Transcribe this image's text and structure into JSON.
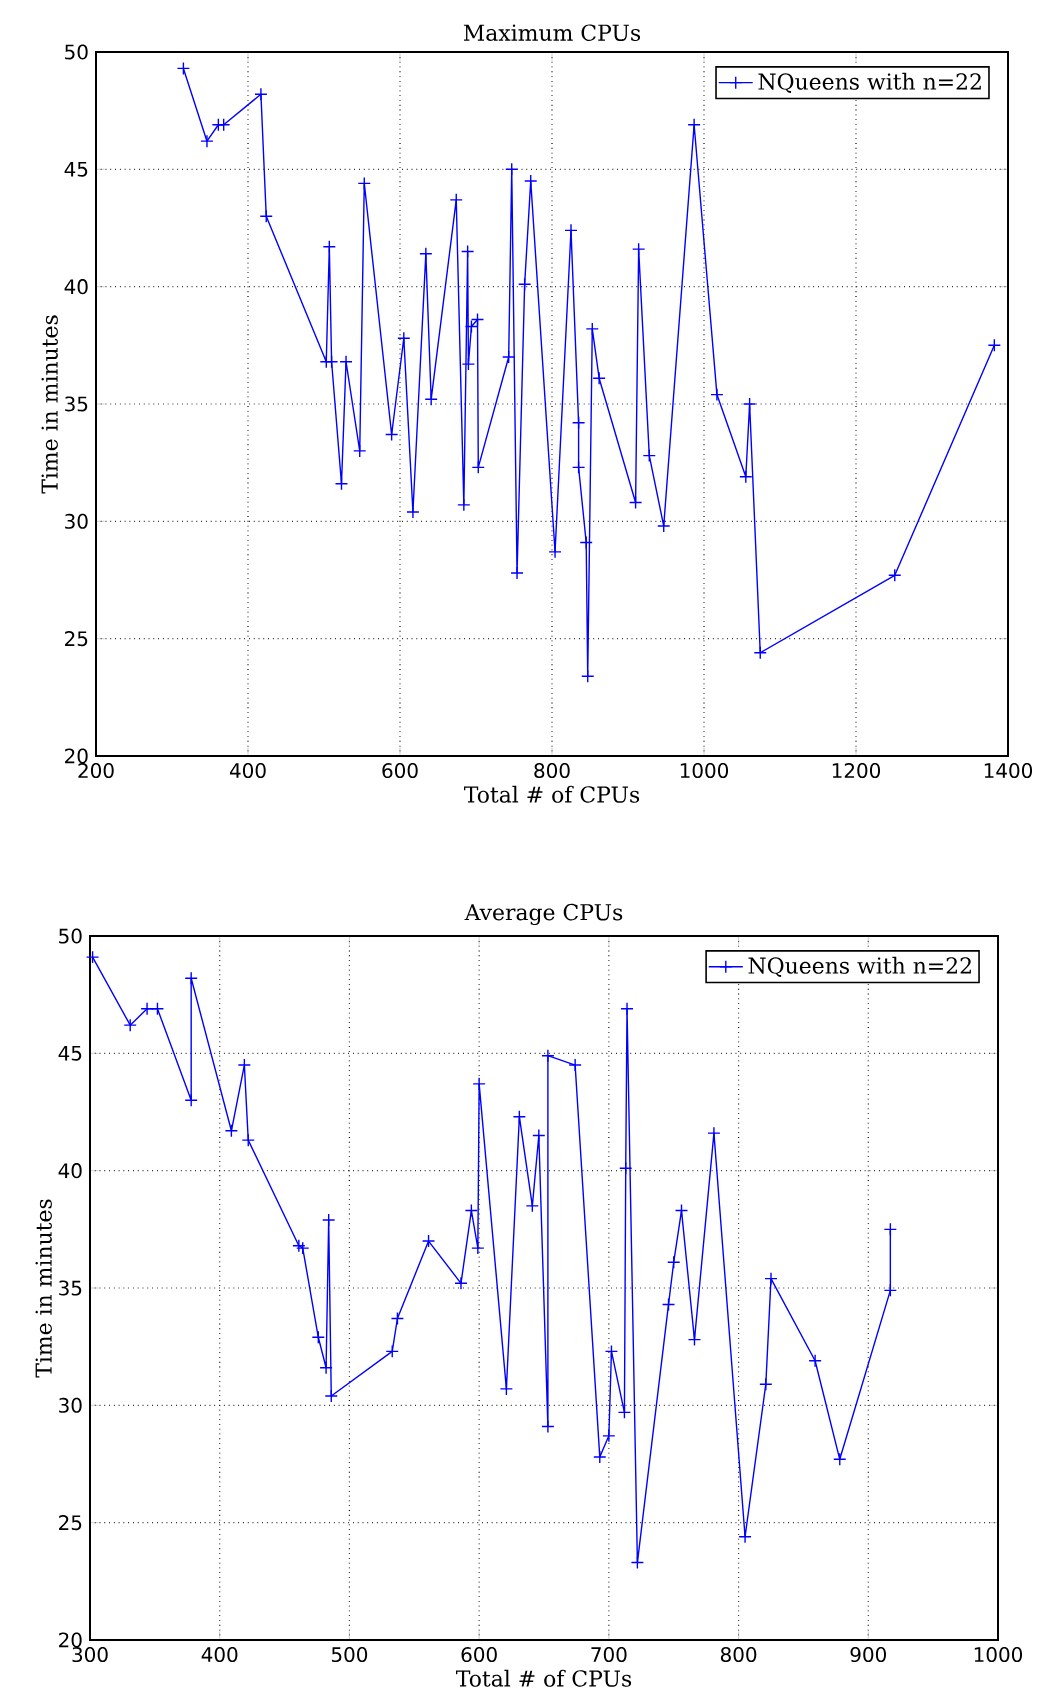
{
  "chart_data": [
    {
      "type": "line",
      "title": "Maximum CPUs",
      "xlabel": "Total # of CPUs",
      "ylabel": "Time in minutes",
      "xlim": [
        200,
        1400
      ],
      "ylim": [
        20,
        50
      ],
      "xticks": [
        200,
        400,
        600,
        800,
        1000,
        1200,
        1400
      ],
      "yticks": [
        20,
        25,
        30,
        35,
        40,
        45,
        50
      ],
      "grid": true,
      "legend": "top right",
      "marker": "cross",
      "line_style": "solid",
      "series": [
        {
          "name": "NQueens with n=22",
          "color": "#0000ff",
          "x": [
            315,
            346,
            361,
            368,
            417,
            424,
            503,
            507,
            510,
            523,
            529,
            547,
            553,
            589,
            605,
            617,
            634,
            641,
            674,
            684,
            689,
            690,
            694,
            702,
            703,
            743,
            747,
            754,
            764,
            772,
            804,
            825,
            835,
            835,
            845,
            847,
            853,
            862,
            910,
            914,
            928,
            947,
            987,
            1017,
            1055,
            1060,
            1074,
            1251,
            1382
          ],
          "values": [
            49.3,
            46.2,
            46.9,
            46.9,
            48.2,
            43.0,
            36.8,
            41.7,
            36.8,
            31.6,
            36.8,
            33.0,
            44.4,
            33.7,
            37.8,
            30.4,
            41.4,
            35.2,
            43.7,
            30.7,
            41.5,
            36.7,
            38.3,
            38.6,
            32.3,
            37.0,
            45.0,
            27.8,
            40.1,
            44.5,
            28.7,
            42.4,
            34.2,
            32.3,
            29.1,
            23.4,
            38.2,
            36.1,
            30.8,
            41.6,
            32.8,
            29.8,
            46.9,
            35.4,
            31.9,
            35.0,
            24.4,
            27.7,
            37.5
          ]
        }
      ]
    },
    {
      "type": "line",
      "title": "Average CPUs",
      "xlabel": "Total # of CPUs",
      "ylabel": "Time in minutes",
      "xlim": [
        300,
        1000
      ],
      "ylim": [
        20,
        50
      ],
      "xticks": [
        300,
        400,
        500,
        600,
        700,
        800,
        900,
        1000
      ],
      "yticks": [
        20,
        25,
        30,
        35,
        40,
        45,
        50
      ],
      "grid": true,
      "legend": "top right",
      "marker": "cross",
      "line_style": "solid",
      "series": [
        {
          "name": "NQueens with n=22",
          "color": "#0000ff",
          "x": [
            302,
            331,
            344,
            352,
            378,
            378,
            409,
            419,
            422,
            461,
            464,
            476,
            482,
            484,
            486,
            533,
            537,
            561,
            586,
            594,
            599,
            600,
            621,
            631,
            641,
            646,
            653,
            653,
            674,
            693,
            700,
            702,
            712,
            713,
            714,
            722,
            746,
            750,
            756,
            766,
            781,
            805,
            821,
            825,
            859,
            878,
            917,
            917
          ],
          "values": [
            49.1,
            46.2,
            46.9,
            46.9,
            43.0,
            48.2,
            41.7,
            44.5,
            41.3,
            36.8,
            36.7,
            32.9,
            31.6,
            37.9,
            30.4,
            32.3,
            33.7,
            37.0,
            35.2,
            38.3,
            36.7,
            43.7,
            30.7,
            42.3,
            38.5,
            41.5,
            29.1,
            44.9,
            44.5,
            27.8,
            28.7,
            32.3,
            29.7,
            40.1,
            46.9,
            23.3,
            34.3,
            36.1,
            38.3,
            32.8,
            41.6,
            24.4,
            30.9,
            35.4,
            31.9,
            27.7,
            34.9,
            37.5
          ]
        }
      ]
    }
  ]
}
